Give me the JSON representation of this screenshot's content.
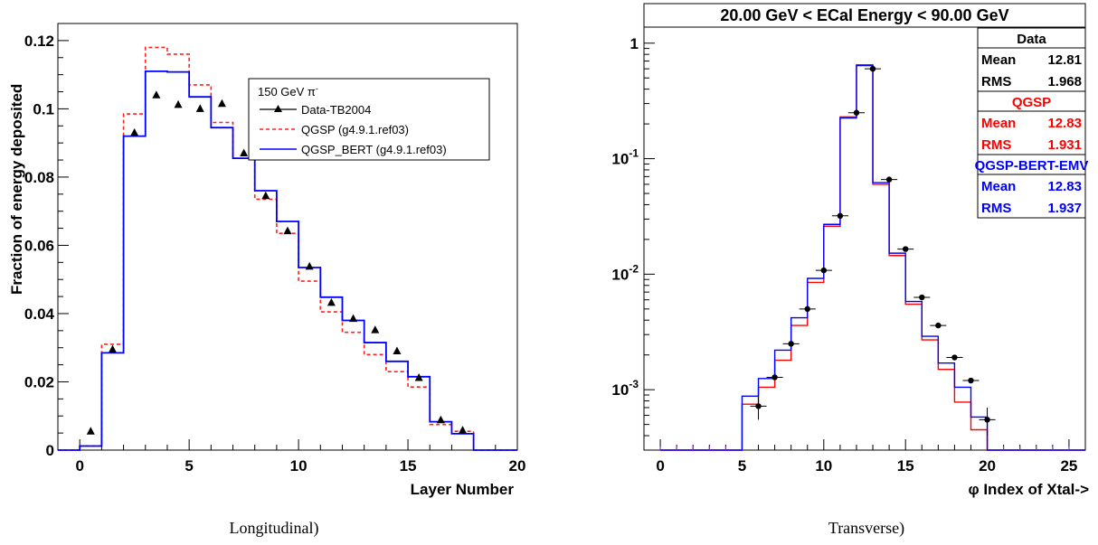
{
  "chart_data": [
    {
      "type": "histogram",
      "caption": "Longitudinal)",
      "xlabel": "Layer Number",
      "ylabel": "Fraction of energy deposited",
      "xlim": [
        -1,
        20
      ],
      "ylim": [
        0,
        0.125
      ],
      "x_ticks": [
        "0",
        "5",
        "10",
        "15",
        "20"
      ],
      "y_ticks": [
        "0",
        "0.02",
        "0.04",
        "0.06",
        "0.08",
        "0.1",
        "0.12"
      ],
      "legend": {
        "header": "150 GeV π",
        "header_sup": "-",
        "position": "top-right",
        "entries": [
          "Data-TB2004",
          "QGSP (g4.9.1.ref03)",
          "QGSP_BERT (g4.9.1.ref03)"
        ]
      },
      "bin_edges": [
        0,
        1,
        2,
        3,
        4,
        5,
        6,
        7,
        8,
        9,
        10,
        11,
        12,
        13,
        14,
        15,
        16,
        17,
        18
      ],
      "series": [
        {
          "name": "Data-TB2004",
          "kind": "points",
          "color": "#000000",
          "x": [
            0.5,
            1.5,
            2.5,
            3.5,
            4.5,
            5.5,
            6.5,
            7.5,
            8.5,
            9.5,
            10.5,
            11.5,
            12.5,
            13.5,
            14.5,
            15.5,
            16.5,
            17.5
          ],
          "y": [
            0.0055,
            0.0295,
            0.093,
            0.104,
            0.1012,
            0.1,
            0.1015,
            0.087,
            0.0745,
            0.0642,
            0.0538,
            0.0432,
            0.0385,
            0.0352,
            0.029,
            0.0212,
            0.0088,
            0.0058
          ]
        },
        {
          "name": "QGSP (g4.9.1.ref03)",
          "kind": "step-dashed",
          "color": "#ff2020",
          "values": [
            0.0012,
            0.031,
            0.0985,
            0.118,
            0.116,
            0.107,
            0.096,
            0.0855,
            0.0735,
            0.0635,
            0.0495,
            0.0405,
            0.0345,
            0.028,
            0.023,
            0.0185,
            0.0075,
            0.0055
          ]
        },
        {
          "name": "QGSP_BERT (g4.9.1.ref03)",
          "kind": "step",
          "color": "#0000ff",
          "values": [
            0.0012,
            0.0285,
            0.092,
            0.111,
            0.1108,
            0.1035,
            0.0945,
            0.0855,
            0.076,
            0.067,
            0.0535,
            0.0448,
            0.038,
            0.0315,
            0.026,
            0.0215,
            0.0083,
            0.0048
          ]
        }
      ]
    },
    {
      "type": "histogram",
      "caption": "Transverse)",
      "title": "20.00 GeV < ECal Energy < 90.00 GeV",
      "xlabel": "φ Index of Xtal->",
      "ylabel": "",
      "yscale": "log",
      "xlim": [
        -1,
        26
      ],
      "ylim": [
        0.0003,
        2.2
      ],
      "x_ticks": [
        "0",
        "5",
        "10",
        "15",
        "20",
        "25"
      ],
      "y_ticks": [
        {
          "base": "10",
          "exp": "-3",
          "value": 0.001
        },
        {
          "base": "10",
          "exp": "-2",
          "value": 0.01
        },
        {
          "base": "10",
          "exp": "-1",
          "value": 0.1
        },
        {
          "base": "1",
          "exp": "",
          "value": 1
        }
      ],
      "stats": [
        {
          "header": "Data",
          "color": "#000000",
          "mean_label": "Mean",
          "mean": "12.81",
          "rms_label": "RMS",
          "rms": "1.968"
        },
        {
          "header": "QGSP",
          "color": "#ff0000",
          "mean_label": "Mean",
          "mean": "12.83",
          "rms_label": "RMS",
          "rms": "1.931"
        },
        {
          "header": "QGSP-BERT-EMV",
          "color": "#0000ff",
          "mean_label": "Mean",
          "mean": "12.83",
          "rms_label": "RMS",
          "rms": "1.937"
        }
      ],
      "bin_edges": [
        0,
        1,
        2,
        3,
        4,
        5,
        6,
        7,
        8,
        9,
        10,
        11,
        12,
        13,
        14,
        15,
        16,
        17,
        18,
        19,
        20,
        21,
        22,
        23,
        24,
        25,
        26
      ],
      "series": [
        {
          "name": "Data",
          "kind": "points",
          "color": "#000000",
          "x": [
            6,
            7,
            8,
            9,
            10,
            11,
            12,
            13,
            14,
            15,
            16,
            17,
            18,
            19,
            20
          ],
          "y": [
            0.00072,
            0.00128,
            0.0025,
            0.005,
            0.0108,
            0.032,
            0.25,
            0.6,
            0.066,
            0.0165,
            0.0063,
            0.0036,
            0.0019,
            0.0012,
            0.00055
          ]
        },
        {
          "name": "QGSP",
          "kind": "step",
          "color": "#ff0000",
          "values": [
            0.0003,
            0.0003,
            0.0003,
            0.0003,
            0.0003,
            0.00075,
            0.00105,
            0.0018,
            0.0036,
            0.0085,
            0.026,
            0.23,
            0.65,
            0.06,
            0.0145,
            0.0055,
            0.0027,
            0.0015,
            0.00078,
            0.00045,
            0.0003,
            0.0003,
            0.0003,
            0.0003,
            0.0003,
            0.0003
          ]
        },
        {
          "name": "QGSP-BERT-EMV",
          "kind": "step",
          "color": "#0000ff",
          "values": [
            0.0003,
            0.0003,
            0.0003,
            0.0003,
            0.0003,
            0.00088,
            0.00125,
            0.0022,
            0.0042,
            0.0092,
            0.027,
            0.225,
            0.64,
            0.062,
            0.0152,
            0.0058,
            0.0029,
            0.0017,
            0.00105,
            0.00058,
            0.0003,
            0.0003,
            0.0003,
            0.0003,
            0.0003,
            0.0003
          ]
        }
      ]
    }
  ]
}
